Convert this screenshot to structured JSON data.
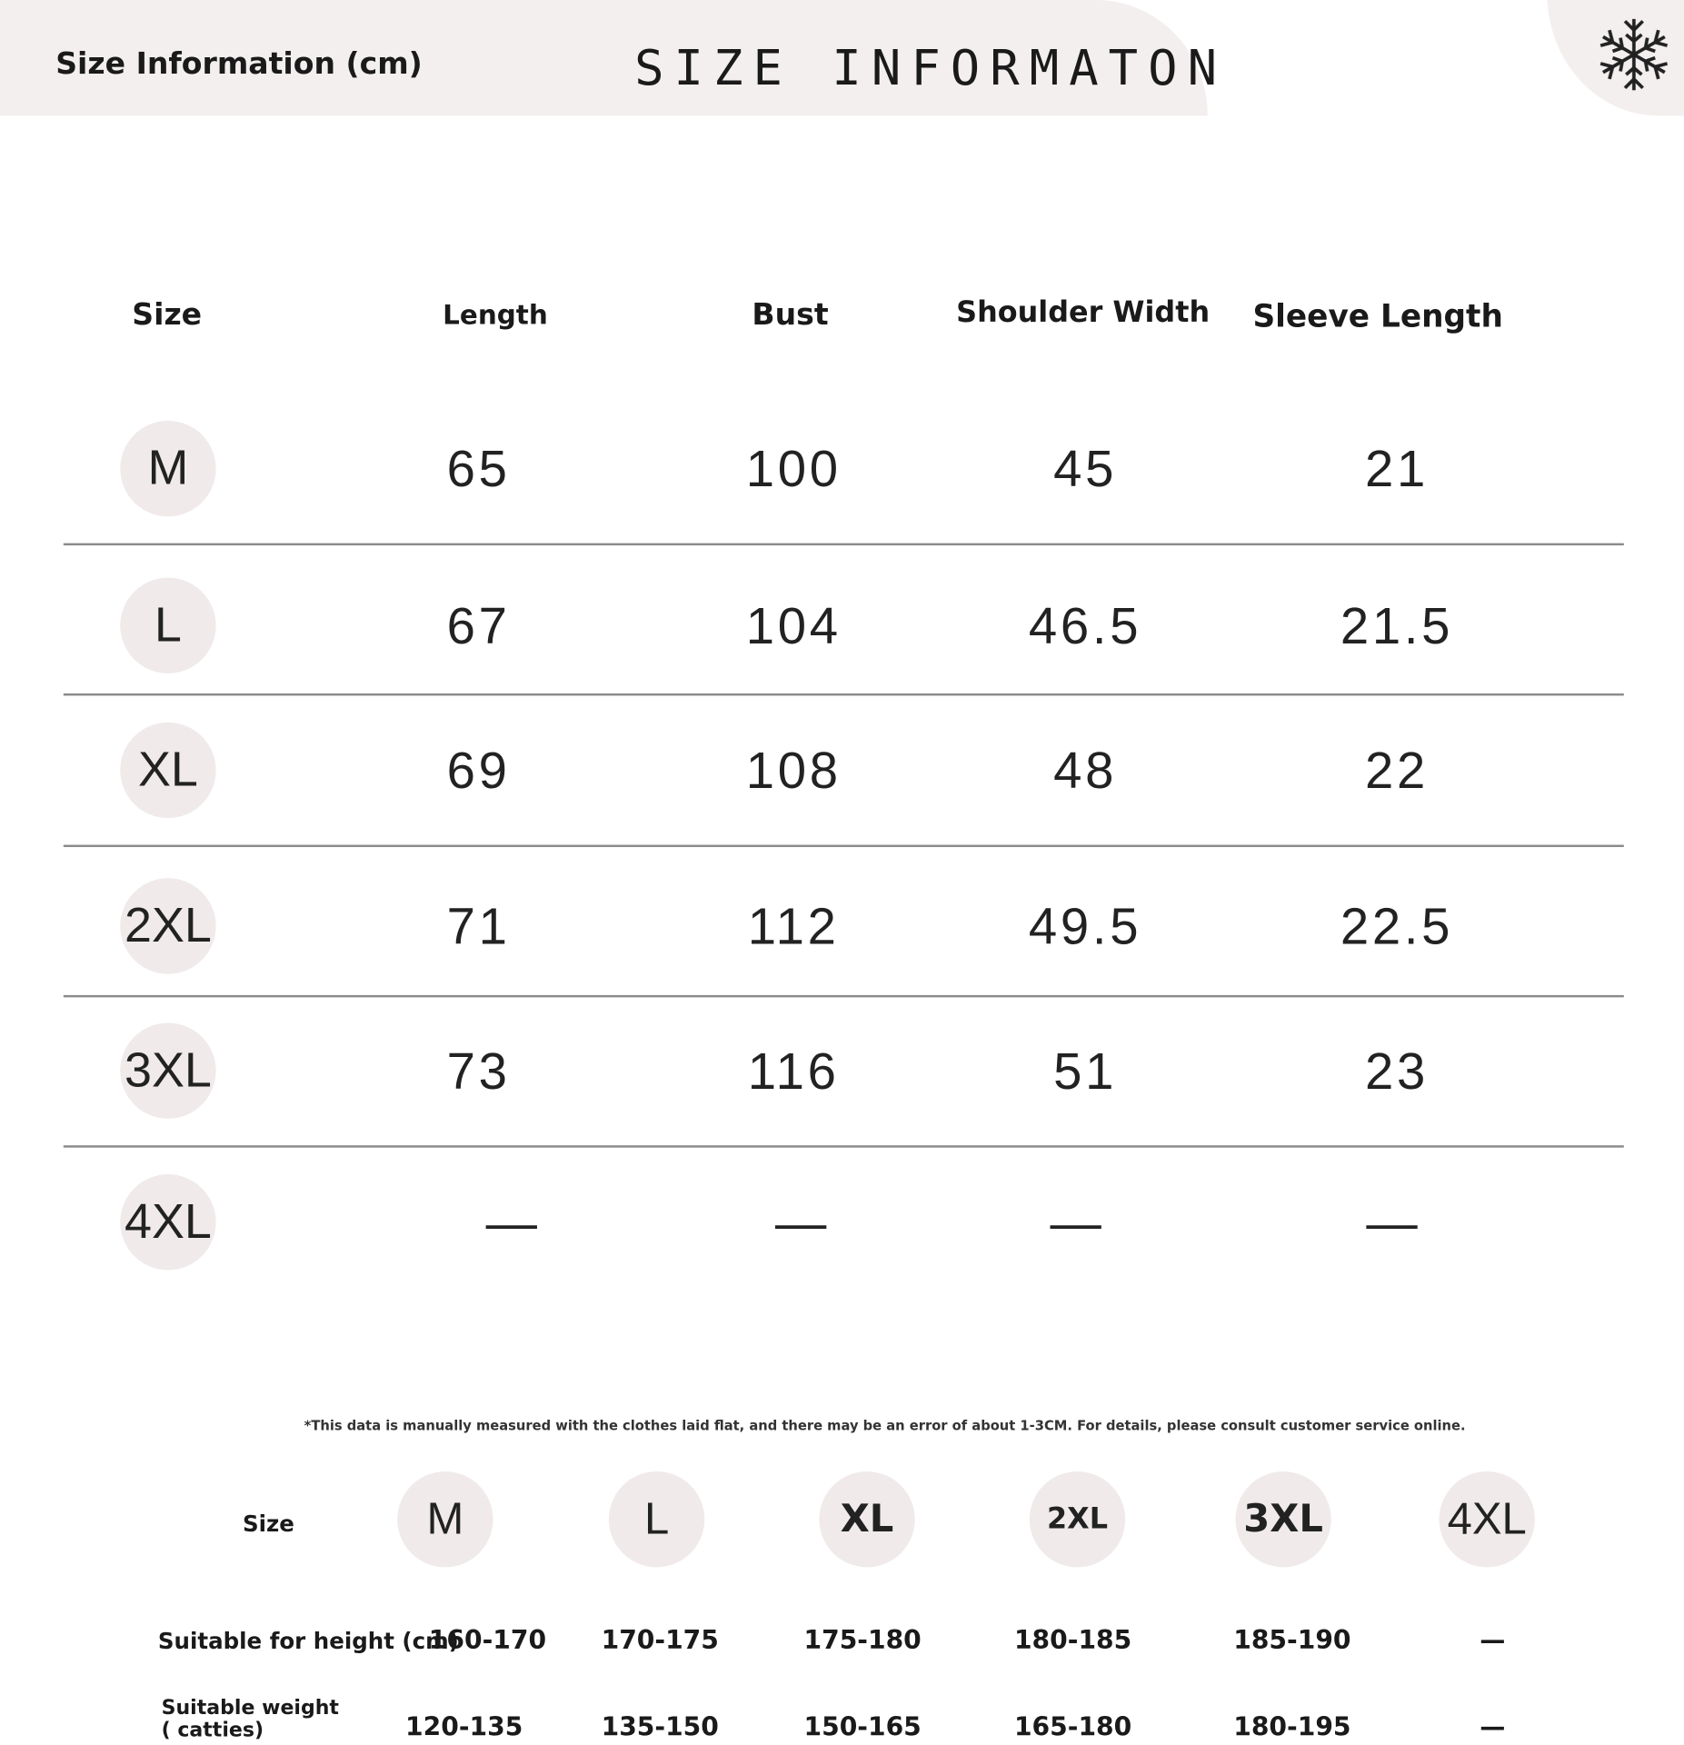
{
  "header": {
    "left_title": "Size Information (cm)",
    "center_title": "SIZE INFORMATON",
    "icon": "snowflake-icon"
  },
  "table": {
    "headers": [
      "Size",
      "Length",
      "Bust",
      "Shoulder Width",
      "Sleeve Length"
    ],
    "rows": [
      {
        "size": "M",
        "values": [
          "65",
          "100",
          "45",
          "21"
        ]
      },
      {
        "size": "L",
        "values": [
          "67",
          "104",
          "46.5",
          "21.5"
        ]
      },
      {
        "size": "XL",
        "values": [
          "69",
          "108",
          "48",
          "22"
        ]
      },
      {
        "size": "2XL",
        "values": [
          "71",
          "112",
          "49.5",
          "22.5"
        ]
      },
      {
        "size": "3XL",
        "values": [
          "73",
          "116",
          "51",
          "23"
        ]
      },
      {
        "size": "4XL",
        "values": [
          "—",
          "—",
          "—",
          "—"
        ]
      }
    ]
  },
  "note": "*This data is manually measured with the clothes laid flat, and there may be an error of about 1-3CM. For details, please consult customer service online.",
  "fit": {
    "size_label": "Size",
    "sizes": [
      "M",
      "L",
      "XL",
      "2XL",
      "3XL",
      "4XL"
    ],
    "height_label": "Suitable for height (cm)",
    "heights": [
      "160-170",
      "170-175",
      "175-180",
      "180-185",
      "185-190",
      "—"
    ],
    "weight_label": "Suitable weight ( catties)",
    "weights": [
      "120-135",
      "135-150",
      "150-165",
      "165-180",
      "180-195",
      "—"
    ]
  }
}
